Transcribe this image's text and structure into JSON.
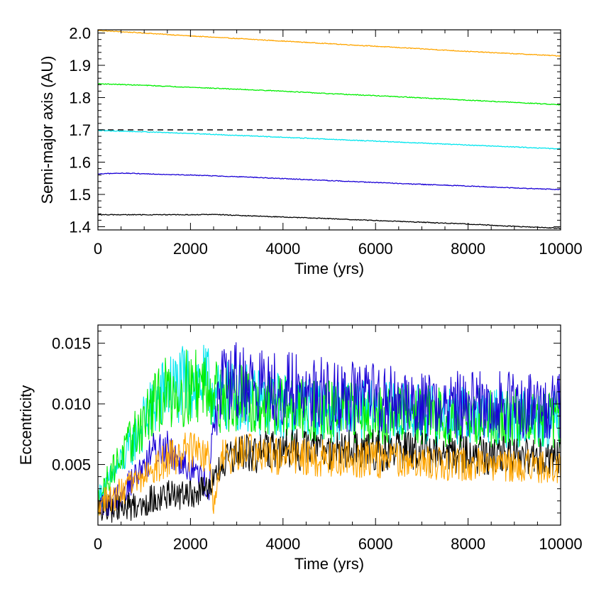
{
  "chart_data": [
    {
      "type": "line",
      "xlabel": "Time (yrs)",
      "ylabel": "Semi-major axis (AU)",
      "xlim": [
        0,
        10000
      ],
      "ylim": [
        1.39,
        2.01
      ],
      "xticks": [
        0,
        2000,
        4000,
        6000,
        8000,
        10000
      ],
      "yticks": [
        1.4,
        1.5,
        1.6,
        1.7,
        1.8,
        1.9,
        2.0
      ],
      "xtick_labels": [
        "0",
        "2000",
        "4000",
        "6000",
        "8000",
        "10000"
      ],
      "ytick_labels": [
        "1.4",
        "1.5",
        "1.6",
        "1.7",
        "1.8",
        "1.9",
        "2.0"
      ],
      "reference_lines": [
        {
          "y": 1.7,
          "style": "dashed",
          "color": "#000000"
        }
      ],
      "series": [
        {
          "color": "#ffa500",
          "x": [
            0,
            1000,
            2000,
            3000,
            4000,
            5000,
            6000,
            7000,
            8000,
            9000,
            10000
          ],
          "y": [
            2.008,
            2.0,
            1.991,
            1.983,
            1.975,
            1.967,
            1.959,
            1.951,
            1.943,
            1.936,
            1.929
          ]
        },
        {
          "color": "#00ee00",
          "x": [
            0,
            1000,
            2000,
            3000,
            4000,
            5000,
            6000,
            7000,
            8000,
            9000,
            10000
          ],
          "y": [
            1.843,
            1.838,
            1.832,
            1.826,
            1.82,
            1.812,
            1.806,
            1.799,
            1.792,
            1.785,
            1.778
          ]
        },
        {
          "color": "#00e5ee",
          "x": [
            0,
            1000,
            2000,
            3000,
            4000,
            5000,
            6000,
            7000,
            8000,
            9000,
            10000
          ],
          "y": [
            1.698,
            1.694,
            1.689,
            1.683,
            1.677,
            1.671,
            1.665,
            1.659,
            1.653,
            1.647,
            1.641
          ]
        },
        {
          "color": "#1a00d6",
          "x": [
            0,
            500,
            1000,
            2000,
            3000,
            4000,
            5000,
            6000,
            7000,
            8000,
            9000,
            10000
          ],
          "y": [
            1.563,
            1.566,
            1.564,
            1.56,
            1.555,
            1.549,
            1.543,
            1.537,
            1.531,
            1.526,
            1.52,
            1.515
          ]
        },
        {
          "color": "#000000",
          "x": [
            0,
            1000,
            2000,
            2500,
            3000,
            4000,
            5000,
            6000,
            7000,
            8000,
            9000,
            10000
          ],
          "y": [
            1.437,
            1.437,
            1.437,
            1.438,
            1.435,
            1.43,
            1.425,
            1.419,
            1.414,
            1.408,
            1.401,
            1.395
          ]
        }
      ]
    },
    {
      "type": "line",
      "xlabel": "Time (yrs)",
      "ylabel": "Eccentricity",
      "xlim": [
        0,
        10000
      ],
      "ylim": [
        0.0,
        0.0165
      ],
      "xticks": [
        0,
        2000,
        4000,
        6000,
        8000,
        10000
      ],
      "yticks": [
        0.005,
        0.01,
        0.015
      ],
      "xtick_labels": [
        "0",
        "2000",
        "4000",
        "6000",
        "8000",
        "10000"
      ],
      "ytick_labels": [
        "0.005",
        "0.010",
        "0.015"
      ],
      "series": [
        {
          "color": "#00e5ee",
          "x": [
            0,
            300,
            600,
            900,
            1200,
            1500,
            1800,
            2100,
            2400,
            2600,
            3000,
            4000,
            5000,
            6000,
            7000,
            8000,
            9000,
            10000
          ],
          "y": [
            0.002,
            0.004,
            0.0058,
            0.0078,
            0.0098,
            0.0112,
            0.0115,
            0.0118,
            0.0115,
            0.0105,
            0.0106,
            0.0098,
            0.0095,
            0.0093,
            0.0091,
            0.0089,
            0.0088,
            0.0087
          ]
        },
        {
          "color": "#00ee00",
          "x": [
            0,
            300,
            600,
            900,
            1200,
            1500,
            1800,
            2100,
            2400,
            2600,
            3000,
            4000,
            5000,
            6000,
            7000,
            8000,
            9000,
            10000
          ],
          "y": [
            0.002,
            0.0045,
            0.0062,
            0.008,
            0.0098,
            0.011,
            0.0112,
            0.0115,
            0.0118,
            0.0106,
            0.0104,
            0.0096,
            0.0093,
            0.0091,
            0.009,
            0.0089,
            0.0088,
            0.0087
          ]
        },
        {
          "color": "#1a00d6",
          "x": [
            0,
            300,
            600,
            900,
            1200,
            1500,
            1800,
            2100,
            2400,
            2500,
            2700,
            3000,
            4000,
            5000,
            6000,
            7000,
            8000,
            9000,
            10000
          ],
          "y": [
            0.0015,
            0.002,
            0.003,
            0.0045,
            0.006,
            0.0065,
            0.0055,
            0.0045,
            0.003,
            0.0085,
            0.0115,
            0.0118,
            0.0112,
            0.0108,
            0.0104,
            0.01,
            0.0099,
            0.0099,
            0.0098
          ]
        },
        {
          "color": "#000000",
          "x": [
            0,
            300,
            600,
            900,
            1200,
            1500,
            1800,
            2100,
            2400,
            2700,
            3000,
            4000,
            5000,
            6000,
            7000,
            8000,
            9000,
            10000
          ],
          "y": [
            0.0012,
            0.0014,
            0.0015,
            0.0017,
            0.0022,
            0.0025,
            0.0024,
            0.0026,
            0.003,
            0.005,
            0.0058,
            0.0062,
            0.0063,
            0.0062,
            0.006,
            0.0058,
            0.0057,
            0.0055
          ]
        },
        {
          "color": "#ffa500",
          "x": [
            0,
            300,
            600,
            900,
            1200,
            1500,
            1800,
            2100,
            2400,
            2500,
            2700,
            3000,
            4000,
            5000,
            6000,
            7000,
            8000,
            9000,
            10000
          ],
          "y": [
            0.0018,
            0.0022,
            0.003,
            0.0038,
            0.0045,
            0.0055,
            0.006,
            0.0062,
            0.0055,
            0.0015,
            0.0055,
            0.006,
            0.0056,
            0.0055,
            0.0054,
            0.0052,
            0.005,
            0.0049,
            0.0048
          ]
        }
      ]
    }
  ]
}
